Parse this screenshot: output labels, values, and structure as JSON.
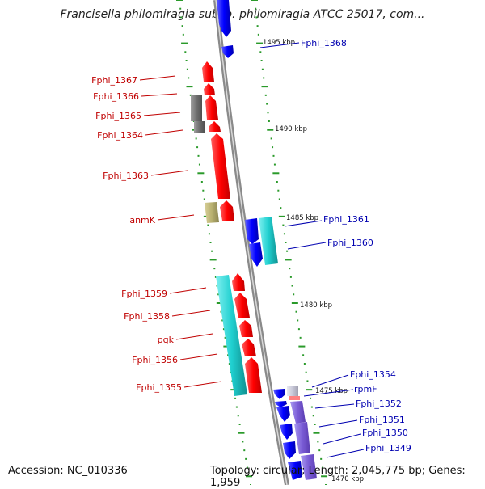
{
  "title": "Francisella philomiragia subsp. philomiragia ATCC 25017, com...",
  "footer": {
    "accession": "Accession: NC_010336",
    "summary": "Topology: circular; Length: 2,045,775 bp; Genes: 1,959"
  },
  "colors": {
    "backbone": "#888888",
    "tick": "#2a9a2a",
    "reverse_label": "#c00000",
    "forward_label": "#0000b0",
    "red": "#ff1a1a",
    "blue": "#1a1aff",
    "cyan": "#22d4d4",
    "gray": "#707070",
    "olive": "#b8b070",
    "purple": "#7a5cd6",
    "lightgray": "#c8c8d8",
    "pink": "#ff8080"
  },
  "kbp_labels": [
    "1495 kbp",
    "1490 kbp",
    "1485 kbp",
    "1480 kbp",
    "1475 kbp",
    "1470 kbp"
  ],
  "left_genes": [
    {
      "label": "Fphi_1367"
    },
    {
      "label": "Fphi_1366"
    },
    {
      "label": "Fphi_1365"
    },
    {
      "label": "Fphi_1364"
    },
    {
      "label": "Fphi_1363"
    },
    {
      "label": "anmK"
    },
    {
      "label": "Fphi_1359"
    },
    {
      "label": "Fphi_1358"
    },
    {
      "label": "pgk"
    },
    {
      "label": "Fphi_1356"
    },
    {
      "label": "Fphi_1355"
    }
  ],
  "right_genes": [
    {
      "label": "Fphi_1368"
    },
    {
      "label": "Fphi_1361"
    },
    {
      "label": "Fphi_1360"
    },
    {
      "label": "Fphi_1354"
    },
    {
      "label": "rpmF"
    },
    {
      "label": "Fphi_1352"
    },
    {
      "label": "Fphi_1351"
    },
    {
      "label": "Fphi_1350"
    },
    {
      "label": "Fphi_1349"
    }
  ]
}
